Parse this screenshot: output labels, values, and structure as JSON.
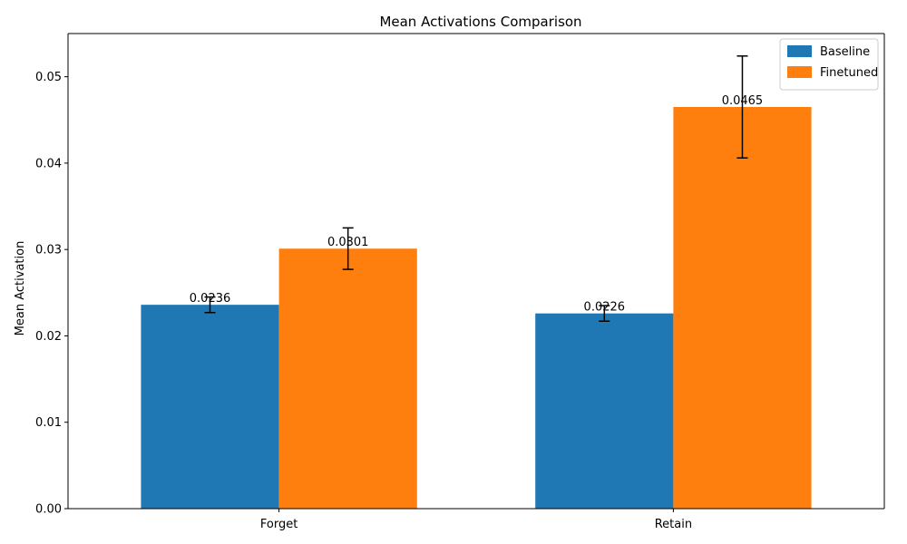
{
  "chart_data": {
    "type": "bar",
    "title": "Mean Activations Comparison",
    "xlabel": "",
    "ylabel": "Mean Activation",
    "categories": [
      "Forget",
      "Retain"
    ],
    "series": [
      {
        "name": "Baseline",
        "color": "#1f77b4",
        "values": [
          0.0236,
          0.0226
        ],
        "errors": [
          0.0009,
          0.0009
        ],
        "labels": [
          "0.0236",
          "0.0226"
        ]
      },
      {
        "name": "Finetuned",
        "color": "#ff7f0e",
        "values": [
          0.0301,
          0.0465
        ],
        "errors": [
          0.0024,
          0.0059
        ],
        "labels": [
          "0.0301",
          "0.0465"
        ]
      }
    ],
    "ylim": [
      0,
      0.055
    ],
    "yticks": [
      "0.00",
      "0.01",
      "0.02",
      "0.03",
      "0.04",
      "0.05"
    ],
    "legend_position": "top-right",
    "grid": false
  }
}
